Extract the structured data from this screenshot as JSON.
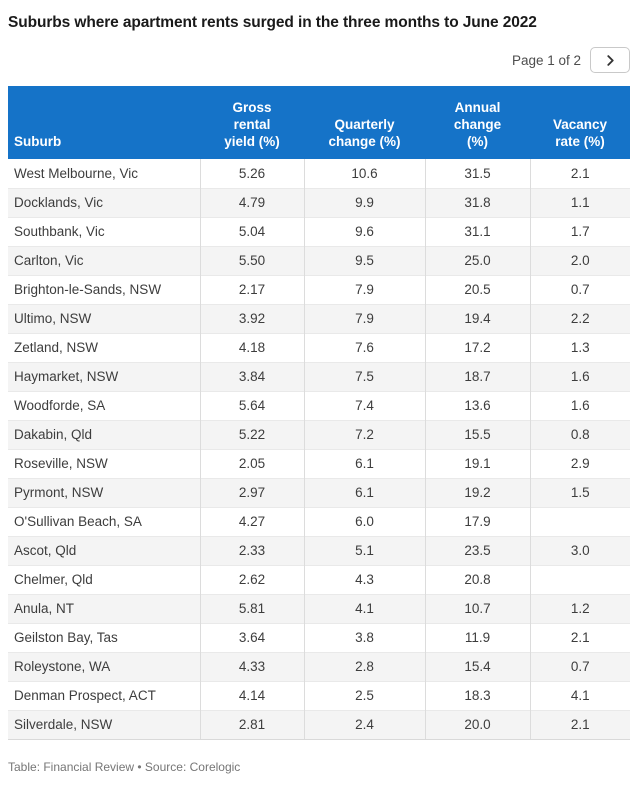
{
  "chart_data": {
    "type": "table",
    "title": "Suburbs where apartment rents surged in the three months to June 2022",
    "columns": [
      {
        "key": "suburb",
        "label": "Suburb",
        "align": "left"
      },
      {
        "key": "gross",
        "label": "Gross\nrental\nyield (%)",
        "align": "center"
      },
      {
        "key": "quarterly",
        "label": "Quarterly\nchange (%)",
        "align": "center"
      },
      {
        "key": "annual",
        "label": "Annual\nchange\n(%)",
        "align": "center"
      },
      {
        "key": "vacancy",
        "label": "Vacancy\nrate (%)",
        "align": "center"
      }
    ],
    "rows": [
      [
        "West Melbourne, Vic",
        "5.26",
        "10.6",
        "31.5",
        "2.1"
      ],
      [
        "Docklands, Vic",
        "4.79",
        "9.9",
        "31.8",
        "1.1"
      ],
      [
        "Southbank, Vic",
        "5.04",
        "9.6",
        "31.1",
        "1.7"
      ],
      [
        "Carlton, Vic",
        "5.50",
        "9.5",
        "25.0",
        "2.0"
      ],
      [
        "Brighton-le-Sands, NSW",
        "2.17",
        "7.9",
        "20.5",
        "0.7"
      ],
      [
        "Ultimo, NSW",
        "3.92",
        "7.9",
        "19.4",
        "2.2"
      ],
      [
        "Zetland, NSW",
        "4.18",
        "7.6",
        "17.2",
        "1.3"
      ],
      [
        "Haymarket, NSW",
        "3.84",
        "7.5",
        "18.7",
        "1.6"
      ],
      [
        "Woodforde, SA",
        "5.64",
        "7.4",
        "13.6",
        "1.6"
      ],
      [
        "Dakabin, Qld",
        "5.22",
        "7.2",
        "15.5",
        "0.8"
      ],
      [
        "Roseville, NSW",
        "2.05",
        "6.1",
        "19.1",
        "2.9"
      ],
      [
        "Pyrmont, NSW",
        "2.97",
        "6.1",
        "19.2",
        "1.5"
      ],
      [
        "O'Sullivan Beach, SA",
        "4.27",
        "6.0",
        "17.9",
        ""
      ],
      [
        "Ascot, Qld",
        "2.33",
        "5.1",
        "23.5",
        "3.0"
      ],
      [
        "Chelmer, Qld",
        "2.62",
        "4.3",
        "20.8",
        ""
      ],
      [
        "Anula, NT",
        "5.81",
        "4.1",
        "10.7",
        "1.2"
      ],
      [
        "Geilston Bay, Tas",
        "3.64",
        "3.8",
        "11.9",
        "2.1"
      ],
      [
        "Roleystone, WA",
        "4.33",
        "2.8",
        "15.4",
        "0.7"
      ],
      [
        "Denman Prospect, ACT",
        "4.14",
        "2.5",
        "18.3",
        "4.1"
      ],
      [
        "Silverdale, NSW",
        "2.81",
        "2.4",
        "20.0",
        "2.1"
      ]
    ],
    "layout": {
      "grid": "on",
      "alternating_rows": true,
      "numeric_align": "center"
    }
  },
  "pagination": {
    "label": "Page 1 of 2",
    "next_icon": "chevron-right"
  },
  "footer": {
    "text": "Table: Financial Review • Source: Corelogic"
  },
  "colors": {
    "header_bg": "#1573c8",
    "header_text": "#ffffff",
    "row_alt_bg": "#f4f4f4",
    "grid_line": "#dcdcdc",
    "body_text": "#3d3d3d",
    "muted_text": "#767676"
  }
}
